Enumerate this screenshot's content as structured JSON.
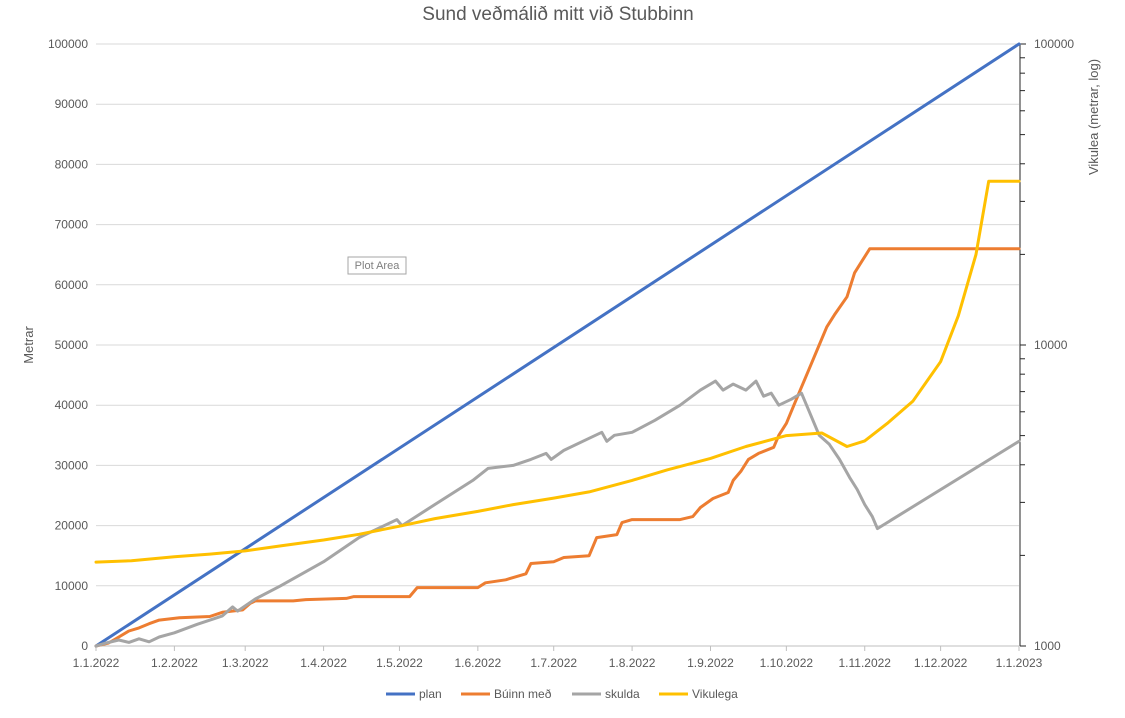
{
  "chart_data": {
    "type": "line",
    "title": "Sund veðmálið mitt við Stubbinn",
    "ylabel": "Metrar",
    "y2label": "Vikulea (metrar, log)",
    "ylim": [
      0,
      100000
    ],
    "y2lim": [
      1000,
      100000
    ],
    "y2scale": "log",
    "grid": true,
    "legend_position": "bottom",
    "xlim": [
      "2022-01-01",
      "2023-01-01"
    ],
    "x_ticks": [
      "1.1.2022",
      "1.2.2022",
      "1.3.2022",
      "1.4.2022",
      "1.5.2022",
      "1.6.2022",
      "1.7.2022",
      "1.8.2022",
      "1.9.2022",
      "1.10.2022",
      "1.11.2022",
      "1.12.2022",
      "1.1.2023"
    ],
    "y_ticks": [
      "0",
      "10000",
      "20000",
      "30000",
      "40000",
      "50000",
      "60000",
      "70000",
      "80000",
      "90000",
      "100000"
    ],
    "y2_ticks": [
      "1000",
      "10000",
      "100000"
    ],
    "tooltip": "Plot Area",
    "series": [
      {
        "name": "plan",
        "color": "#4472c4",
        "axis": "left",
        "points": [
          [
            "2022-01-01",
            0
          ],
          [
            "2023-01-01",
            100000
          ]
        ]
      },
      {
        "name": "Búinn með",
        "color": "#ed7d31",
        "axis": "left",
        "points": [
          [
            "2022-01-01",
            0
          ],
          [
            "2022-01-06",
            500
          ],
          [
            "2022-01-10",
            1500
          ],
          [
            "2022-01-14",
            2500
          ],
          [
            "2022-01-18",
            3000
          ],
          [
            "2022-01-22",
            3700
          ],
          [
            "2022-01-26",
            4300
          ],
          [
            "2022-02-03",
            4700
          ],
          [
            "2022-02-15",
            4900
          ],
          [
            "2022-02-20",
            5600
          ],
          [
            "2022-02-28",
            6000
          ],
          [
            "2022-03-03",
            7100
          ],
          [
            "2022-03-05",
            7500
          ],
          [
            "2022-03-20",
            7500
          ],
          [
            "2022-03-25",
            7700
          ],
          [
            "2022-04-10",
            7900
          ],
          [
            "2022-04-13",
            8200
          ],
          [
            "2022-05-05",
            8200
          ],
          [
            "2022-05-08",
            9700
          ],
          [
            "2022-06-01",
            9700
          ],
          [
            "2022-06-04",
            10500
          ],
          [
            "2022-06-12",
            11000
          ],
          [
            "2022-06-20",
            12000
          ],
          [
            "2022-06-22",
            13700
          ],
          [
            "2022-07-01",
            14000
          ],
          [
            "2022-07-05",
            14700
          ],
          [
            "2022-07-15",
            15000
          ],
          [
            "2022-07-18",
            18000
          ],
          [
            "2022-07-26",
            18500
          ],
          [
            "2022-07-28",
            20500
          ],
          [
            "2022-08-01",
            21000
          ],
          [
            "2022-08-15",
            21000
          ],
          [
            "2022-08-20",
            21000
          ],
          [
            "2022-08-25",
            21500
          ],
          [
            "2022-08-28",
            23000
          ],
          [
            "2022-09-02",
            24500
          ],
          [
            "2022-09-08",
            25500
          ],
          [
            "2022-09-10",
            27500
          ],
          [
            "2022-09-13",
            29000
          ],
          [
            "2022-09-16",
            31000
          ],
          [
            "2022-09-20",
            32000
          ],
          [
            "2022-09-26",
            33000
          ],
          [
            "2022-09-28",
            35000
          ],
          [
            "2022-10-01",
            37000
          ],
          [
            "2022-10-04",
            40000
          ],
          [
            "2022-10-07",
            43000
          ],
          [
            "2022-10-10",
            46000
          ],
          [
            "2022-10-14",
            50000
          ],
          [
            "2022-10-17",
            53000
          ],
          [
            "2022-10-20",
            55000
          ],
          [
            "2022-10-25",
            58000
          ],
          [
            "2022-10-28",
            62000
          ],
          [
            "2022-10-31",
            64000
          ],
          [
            "2022-11-03",
            66000
          ],
          [
            "2023-01-01",
            66000
          ]
        ]
      },
      {
        "name": "skulda",
        "color": "#a5a5a5",
        "axis": "left",
        "points": [
          [
            "2022-01-01",
            0
          ],
          [
            "2022-01-05",
            500
          ],
          [
            "2022-01-10",
            1000
          ],
          [
            "2022-01-14",
            600
          ],
          [
            "2022-01-18",
            1200
          ],
          [
            "2022-01-22",
            700
          ],
          [
            "2022-01-26",
            1500
          ],
          [
            "2022-02-01",
            2200
          ],
          [
            "2022-02-10",
            3600
          ],
          [
            "2022-02-20",
            5000
          ],
          [
            "2022-02-24",
            6500
          ],
          [
            "2022-02-26",
            5800
          ],
          [
            "2022-03-05",
            7800
          ],
          [
            "2022-03-15",
            10000
          ],
          [
            "2022-04-01",
            14000
          ],
          [
            "2022-04-15",
            18000
          ],
          [
            "2022-04-30",
            21000
          ],
          [
            "2022-05-02",
            20000
          ],
          [
            "2022-05-15",
            23500
          ],
          [
            "2022-05-30",
            27500
          ],
          [
            "2022-06-05",
            29500
          ],
          [
            "2022-06-15",
            30000
          ],
          [
            "2022-06-22",
            31000
          ],
          [
            "2022-06-28",
            32000
          ],
          [
            "2022-06-30",
            31000
          ],
          [
            "2022-07-05",
            32500
          ],
          [
            "2022-07-15",
            34500
          ],
          [
            "2022-07-20",
            35500
          ],
          [
            "2022-07-22",
            34000
          ],
          [
            "2022-07-25",
            35000
          ],
          [
            "2022-08-01",
            35500
          ],
          [
            "2022-08-10",
            37500
          ],
          [
            "2022-08-20",
            40000
          ],
          [
            "2022-08-28",
            42500
          ],
          [
            "2022-09-03",
            44000
          ],
          [
            "2022-09-06",
            42500
          ],
          [
            "2022-09-10",
            43500
          ],
          [
            "2022-09-15",
            42500
          ],
          [
            "2022-09-19",
            44000
          ],
          [
            "2022-09-22",
            41500
          ],
          [
            "2022-09-25",
            42000
          ],
          [
            "2022-09-28",
            40000
          ],
          [
            "2022-10-03",
            41000
          ],
          [
            "2022-10-07",
            42000
          ],
          [
            "2022-10-10",
            39000
          ],
          [
            "2022-10-14",
            35000
          ],
          [
            "2022-10-18",
            33500
          ],
          [
            "2022-10-22",
            31000
          ],
          [
            "2022-10-26",
            28000
          ],
          [
            "2022-10-29",
            26000
          ],
          [
            "2022-11-01",
            23500
          ],
          [
            "2022-11-04",
            21500
          ],
          [
            "2022-11-06",
            19500
          ],
          [
            "2023-01-01",
            34000
          ]
        ]
      },
      {
        "name": "Vikulega",
        "color": "#ffc000",
        "axis": "right",
        "points": [
          [
            "2022-01-01",
            1900
          ],
          [
            "2022-01-15",
            1920
          ],
          [
            "2022-02-01",
            1980
          ],
          [
            "2022-02-15",
            2020
          ],
          [
            "2022-03-01",
            2070
          ],
          [
            "2022-03-15",
            2150
          ],
          [
            "2022-04-01",
            2250
          ],
          [
            "2022-04-15",
            2350
          ],
          [
            "2022-05-01",
            2500
          ],
          [
            "2022-05-15",
            2650
          ],
          [
            "2022-06-01",
            2800
          ],
          [
            "2022-06-15",
            2950
          ],
          [
            "2022-07-01",
            3100
          ],
          [
            "2022-07-15",
            3250
          ],
          [
            "2022-08-01",
            3550
          ],
          [
            "2022-08-15",
            3850
          ],
          [
            "2022-09-01",
            4200
          ],
          [
            "2022-09-15",
            4600
          ],
          [
            "2022-10-01",
            5000
          ],
          [
            "2022-10-15",
            5100
          ],
          [
            "2022-10-25",
            4600
          ],
          [
            "2022-11-01",
            4800
          ],
          [
            "2022-11-10",
            5500
          ],
          [
            "2022-11-20",
            6500
          ],
          [
            "2022-12-01",
            8800
          ],
          [
            "2022-12-08",
            12500
          ],
          [
            "2022-12-15",
            20000
          ],
          [
            "2022-12-20",
            35000
          ],
          [
            "2023-01-01",
            35000
          ]
        ]
      }
    ]
  }
}
